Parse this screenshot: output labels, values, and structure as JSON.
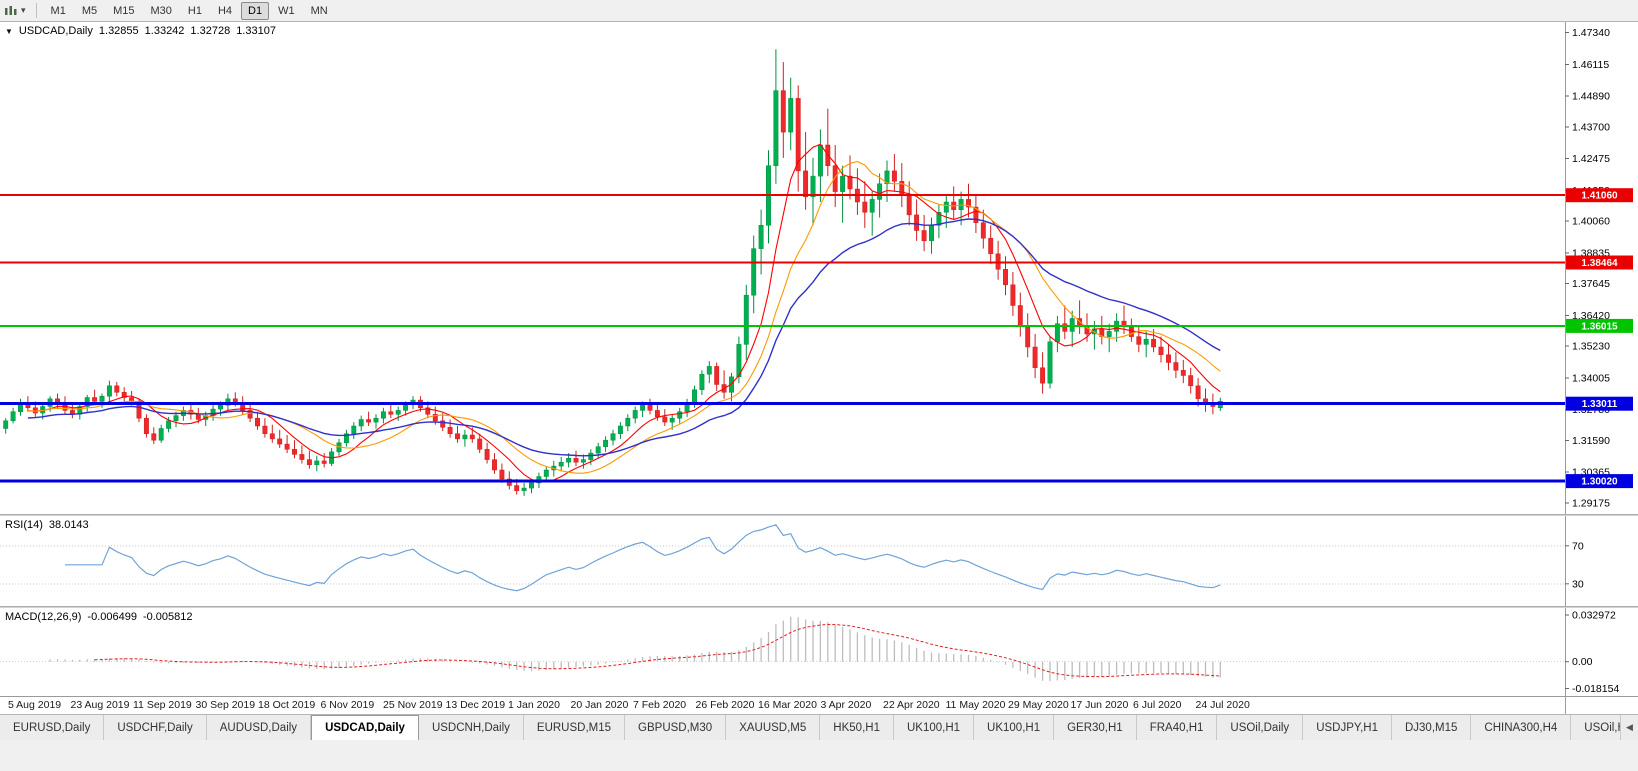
{
  "toolbar": {
    "timeframes": [
      "M1",
      "M5",
      "M15",
      "M30",
      "H1",
      "H4",
      "D1",
      "W1",
      "MN"
    ],
    "active_timeframe": "D1"
  },
  "chart_header": {
    "dropdown_icon": "▼",
    "symbol": "USDCAD,Daily",
    "open": "1.32855",
    "high": "1.33242",
    "low": "1.32728",
    "close": "1.33107"
  },
  "panels": {
    "rsi_label": "RSI(14)",
    "rsi_value": "38.0143",
    "macd_label": "MACD(12,26,9)",
    "macd_value": "-0.006499",
    "macd_signal_value": "-0.005812"
  },
  "tabs": {
    "items": [
      "EURUSD,Daily",
      "USDCHF,Daily",
      "AUDUSD,Daily",
      "USDCAD,Daily",
      "USDCNH,Daily",
      "EURUSD,M15",
      "GBPUSD,M30",
      "XAUUSD,M5",
      "HK50,H1",
      "UK100,H1",
      "UK100,H1",
      "GER30,H1",
      "FRA40,H1",
      "USOil,Daily",
      "USDJPY,H1",
      "DJ30,M15",
      "CHINA300,H4",
      "USOil,H"
    ],
    "active_index": 3,
    "scroll_left_icon": "◀"
  },
  "chart_data": {
    "type": "candlestick",
    "symbol": "USDCAD",
    "timeframe": "Daily",
    "title": "USDCAD,Daily",
    "ohlc_format": [
      "open",
      "high",
      "low",
      "close"
    ],
    "price_range": [
      1.2875,
      1.4775
    ],
    "y_ticks": [
      "1.47340",
      "1.46115",
      "1.44890",
      "1.43700",
      "1.42475",
      "1.41250",
      "1.40060",
      "1.38835",
      "1.37645",
      "1.36420",
      "1.35230",
      "1.34005",
      "1.32780",
      "1.31590",
      "1.30365",
      "1.29175"
    ],
    "x_labels": [
      "5 Aug 2019",
      "23 Aug 2019",
      "11 Sep 2019",
      "30 Sep 2019",
      "18 Oct 2019",
      "6 Nov 2019",
      "25 Nov 2019",
      "13 Dec 2019",
      "1 Jan 2020",
      "20 Jan 2020",
      "7 Feb 2020",
      "26 Feb 2020",
      "16 Mar 2020",
      "3 Apr 2020",
      "22 Apr 2020",
      "11 May 2020",
      "29 May 2020",
      "17 Jun 2020",
      "6 Jul 2020",
      "24 Jul 2020"
    ],
    "hlines": [
      {
        "label": "1.41060",
        "value": 1.4106,
        "color": "#ea0000",
        "width": 2
      },
      {
        "label": "1.38464",
        "value": 1.38464,
        "color": "#ea0000",
        "width": 2
      },
      {
        "label": "1.36015",
        "value": 1.36015,
        "color": "#00c400",
        "width": 2
      },
      {
        "label": "1.33011",
        "value": 1.33011,
        "color": "#0000e0",
        "width": 3
      },
      {
        "label": "1.30020",
        "value": 1.3002,
        "color": "#0000e0",
        "width": 3
      }
    ],
    "colors": {
      "background": "#ffffff",
      "axis": "#9a9a9a",
      "up": "#00b050",
      "down": "#ef2929",
      "up_stroke": "#008f40",
      "down_stroke": "#cf1f1f"
    },
    "ma_lines": [
      {
        "period": 7,
        "type": "sma",
        "color": "#ff0000"
      },
      {
        "period": 13,
        "type": "sma",
        "color": "#ff9900"
      },
      {
        "period": 26,
        "type": "ema",
        "color": "#3030cc"
      }
    ],
    "rsi": {
      "period": 14,
      "current": 38.0143,
      "levels": [
        70,
        30
      ],
      "display_range": [
        15,
        95
      ],
      "color": "#6fa3d8"
    },
    "macd": {
      "fast": 12,
      "slow": 26,
      "signal_period": 9,
      "current": -0.006499,
      "signal_current": -0.005812,
      "display_range": [
        -0.0185,
        0.033
      ],
      "axis_ticks": [
        "0.032972",
        "0.00",
        "-0.018154"
      ],
      "histogram_color": "#bdbdbd",
      "signal_color": "#e02020"
    },
    "candles": [
      [
        1.3205,
        1.3245,
        1.3185,
        1.3235
      ],
      [
        1.3235,
        1.3285,
        1.3225,
        1.327
      ],
      [
        1.327,
        1.332,
        1.3255,
        1.3305
      ],
      [
        1.3305,
        1.333,
        1.327,
        1.3285
      ],
      [
        1.3285,
        1.331,
        1.325,
        1.3265
      ],
      [
        1.3265,
        1.33,
        1.324,
        1.329
      ],
      [
        1.329,
        1.333,
        1.327,
        1.332
      ],
      [
        1.332,
        1.334,
        1.328,
        1.33
      ],
      [
        1.33,
        1.333,
        1.326,
        1.3275
      ],
      [
        1.3275,
        1.3305,
        1.3245,
        1.326
      ],
      [
        1.326,
        1.33,
        1.324,
        1.329
      ],
      [
        1.329,
        1.3335,
        1.327,
        1.3325
      ],
      [
        1.3325,
        1.3355,
        1.33,
        1.331
      ],
      [
        1.331,
        1.334,
        1.3285,
        1.333
      ],
      [
        1.333,
        1.339,
        1.331,
        1.337
      ],
      [
        1.337,
        1.3385,
        1.333,
        1.3345
      ],
      [
        1.3345,
        1.3365,
        1.331,
        1.3325
      ],
      [
        1.3325,
        1.335,
        1.3295,
        1.331
      ],
      [
        1.331,
        1.332,
        1.323,
        1.3245
      ],
      [
        1.3245,
        1.326,
        1.317,
        1.3185
      ],
      [
        1.3185,
        1.321,
        1.3145,
        1.316
      ],
      [
        1.316,
        1.322,
        1.315,
        1.3205
      ],
      [
        1.3205,
        1.325,
        1.319,
        1.3235
      ],
      [
        1.3235,
        1.327,
        1.321,
        1.3255
      ],
      [
        1.3255,
        1.329,
        1.3235,
        1.3275
      ],
      [
        1.3275,
        1.33,
        1.324,
        1.326
      ],
      [
        1.326,
        1.3285,
        1.3225,
        1.324
      ],
      [
        1.324,
        1.327,
        1.3215,
        1.3255
      ],
      [
        1.3255,
        1.3295,
        1.3235,
        1.328
      ],
      [
        1.328,
        1.331,
        1.3255,
        1.3295
      ],
      [
        1.3295,
        1.334,
        1.3275,
        1.332
      ],
      [
        1.332,
        1.3345,
        1.329,
        1.3305
      ],
      [
        1.3305,
        1.333,
        1.326,
        1.3275
      ],
      [
        1.3275,
        1.33,
        1.323,
        1.3245
      ],
      [
        1.3245,
        1.327,
        1.32,
        1.3215
      ],
      [
        1.3215,
        1.3245,
        1.317,
        1.3185
      ],
      [
        1.3185,
        1.322,
        1.315,
        1.3165
      ],
      [
        1.3165,
        1.32,
        1.313,
        1.3145
      ],
      [
        1.3145,
        1.318,
        1.311,
        1.3125
      ],
      [
        1.3125,
        1.316,
        1.309,
        1.3105
      ],
      [
        1.3105,
        1.314,
        1.307,
        1.3085
      ],
      [
        1.3085,
        1.312,
        1.305,
        1.3065
      ],
      [
        1.3065,
        1.31,
        1.304,
        1.308
      ],
      [
        1.308,
        1.311,
        1.3055,
        1.307
      ],
      [
        1.307,
        1.313,
        1.306,
        1.3115
      ],
      [
        1.3115,
        1.3165,
        1.31,
        1.315
      ],
      [
        1.315,
        1.32,
        1.3135,
        1.3185
      ],
      [
        1.3185,
        1.323,
        1.3165,
        1.3215
      ],
      [
        1.3215,
        1.3255,
        1.3195,
        1.324
      ],
      [
        1.324,
        1.327,
        1.3215,
        1.323
      ],
      [
        1.323,
        1.326,
        1.3205,
        1.3245
      ],
      [
        1.3245,
        1.3285,
        1.3225,
        1.327
      ],
      [
        1.327,
        1.33,
        1.3245,
        1.326
      ],
      [
        1.326,
        1.329,
        1.3235,
        1.3275
      ],
      [
        1.3275,
        1.331,
        1.3255,
        1.33
      ],
      [
        1.33,
        1.333,
        1.328,
        1.3315
      ],
      [
        1.3315,
        1.333,
        1.327,
        1.3285
      ],
      [
        1.3285,
        1.331,
        1.3245,
        1.326
      ],
      [
        1.326,
        1.329,
        1.322,
        1.3235
      ],
      [
        1.3235,
        1.3265,
        1.3195,
        1.321
      ],
      [
        1.321,
        1.324,
        1.317,
        1.3185
      ],
      [
        1.3185,
        1.3215,
        1.315,
        1.3165
      ],
      [
        1.3165,
        1.32,
        1.3135,
        1.318
      ],
      [
        1.318,
        1.321,
        1.315,
        1.3165
      ],
      [
        1.3165,
        1.3185,
        1.311,
        1.3125
      ],
      [
        1.3125,
        1.315,
        1.307,
        1.3085
      ],
      [
        1.3085,
        1.311,
        1.303,
        1.3045
      ],
      [
        1.3045,
        1.307,
        1.2995,
        1.301
      ],
      [
        1.301,
        1.304,
        1.297,
        1.2985
      ],
      [
        1.2985,
        1.301,
        1.295,
        1.2965
      ],
      [
        1.2965,
        1.2995,
        1.2945,
        1.2975
      ],
      [
        1.2975,
        1.301,
        1.2955,
        1.2995
      ],
      [
        1.2995,
        1.3035,
        1.2975,
        1.302
      ],
      [
        1.302,
        1.306,
        1.3,
        1.3045
      ],
      [
        1.3045,
        1.308,
        1.302,
        1.306
      ],
      [
        1.306,
        1.3095,
        1.304,
        1.3075
      ],
      [
        1.3075,
        1.311,
        1.3055,
        1.309
      ],
      [
        1.309,
        1.312,
        1.306,
        1.3075
      ],
      [
        1.3075,
        1.3105,
        1.305,
        1.3085
      ],
      [
        1.3085,
        1.3125,
        1.3065,
        1.311
      ],
      [
        1.311,
        1.315,
        1.309,
        1.3135
      ],
      [
        1.3135,
        1.3175,
        1.3115,
        1.316
      ],
      [
        1.316,
        1.32,
        1.314,
        1.3185
      ],
      [
        1.3185,
        1.323,
        1.3165,
        1.3215
      ],
      [
        1.3215,
        1.326,
        1.3195,
        1.3245
      ],
      [
        1.3245,
        1.329,
        1.3225,
        1.3275
      ],
      [
        1.3275,
        1.331,
        1.325,
        1.3295
      ],
      [
        1.3295,
        1.332,
        1.326,
        1.3275
      ],
      [
        1.3275,
        1.33,
        1.3235,
        1.325
      ],
      [
        1.325,
        1.328,
        1.3215,
        1.323
      ],
      [
        1.323,
        1.326,
        1.32,
        1.3245
      ],
      [
        1.3245,
        1.3285,
        1.3225,
        1.327
      ],
      [
        1.327,
        1.332,
        1.325,
        1.3305
      ],
      [
        1.3305,
        1.337,
        1.3285,
        1.3355
      ],
      [
        1.3355,
        1.343,
        1.3335,
        1.3415
      ],
      [
        1.3415,
        1.3465,
        1.338,
        1.3445
      ],
      [
        1.3445,
        1.346,
        1.335,
        1.3375
      ],
      [
        1.3375,
        1.343,
        1.332,
        1.3345
      ],
      [
        1.3345,
        1.342,
        1.331,
        1.3405
      ],
      [
        1.3405,
        1.356,
        1.338,
        1.353
      ],
      [
        1.353,
        1.376,
        1.347,
        1.372
      ],
      [
        1.372,
        1.395,
        1.365,
        1.39
      ],
      [
        1.39,
        1.405,
        1.38,
        1.399
      ],
      [
        1.399,
        1.428,
        1.392,
        1.422
      ],
      [
        1.422,
        1.467,
        1.415,
        1.451
      ],
      [
        1.451,
        1.462,
        1.425,
        1.435
      ],
      [
        1.435,
        1.456,
        1.428,
        1.448
      ],
      [
        1.448,
        1.453,
        1.412,
        1.42
      ],
      [
        1.42,
        1.435,
        1.405,
        1.41
      ],
      [
        1.41,
        1.425,
        1.399,
        1.418
      ],
      [
        1.418,
        1.436,
        1.408,
        1.43
      ],
      [
        1.43,
        1.444,
        1.418,
        1.422
      ],
      [
        1.422,
        1.43,
        1.406,
        1.412
      ],
      [
        1.412,
        1.422,
        1.4,
        1.418
      ],
      [
        1.418,
        1.426,
        1.409,
        1.413
      ],
      [
        1.413,
        1.421,
        1.403,
        1.408
      ],
      [
        1.408,
        1.416,
        1.398,
        1.404
      ],
      [
        1.404,
        1.412,
        1.395,
        1.409
      ],
      [
        1.409,
        1.419,
        1.402,
        1.415
      ],
      [
        1.415,
        1.424,
        1.408,
        1.42
      ],
      [
        1.42,
        1.4265,
        1.412,
        1.416
      ],
      [
        1.416,
        1.423,
        1.406,
        1.411
      ],
      [
        1.411,
        1.416,
        1.399,
        1.403
      ],
      [
        1.403,
        1.409,
        1.393,
        1.397
      ],
      [
        1.397,
        1.403,
        1.389,
        1.393
      ],
      [
        1.393,
        1.402,
        1.388,
        1.399
      ],
      [
        1.399,
        1.407,
        1.394,
        1.404
      ],
      [
        1.404,
        1.411,
        1.398,
        1.408
      ],
      [
        1.408,
        1.414,
        1.401,
        1.405
      ],
      [
        1.405,
        1.412,
        1.399,
        1.409
      ],
      [
        1.409,
        1.415,
        1.402,
        1.406
      ],
      [
        1.406,
        1.411,
        1.396,
        1.4
      ],
      [
        1.4,
        1.405,
        1.39,
        1.394
      ],
      [
        1.394,
        1.399,
        1.384,
        1.388
      ],
      [
        1.388,
        1.393,
        1.378,
        1.382
      ],
      [
        1.382,
        1.387,
        1.372,
        1.376
      ],
      [
        1.376,
        1.381,
        1.364,
        1.368
      ],
      [
        1.368,
        1.373,
        1.356,
        1.36
      ],
      [
        1.36,
        1.365,
        1.348,
        1.352
      ],
      [
        1.352,
        1.357,
        1.34,
        1.344
      ],
      [
        1.344,
        1.35,
        1.334,
        1.338
      ],
      [
        1.338,
        1.356,
        1.336,
        1.354
      ],
      [
        1.354,
        1.364,
        1.35,
        1.361
      ],
      [
        1.361,
        1.368,
        1.355,
        1.358
      ],
      [
        1.358,
        1.366,
        1.352,
        1.363
      ],
      [
        1.363,
        1.37,
        1.357,
        1.36
      ],
      [
        1.36,
        1.365,
        1.354,
        1.357
      ],
      [
        1.357,
        1.362,
        1.351,
        1.359
      ],
      [
        1.359,
        1.364,
        1.353,
        1.356
      ],
      [
        1.356,
        1.361,
        1.35,
        1.358
      ],
      [
        1.358,
        1.365,
        1.354,
        1.362
      ],
      [
        1.362,
        1.368,
        1.357,
        1.36
      ],
      [
        1.36,
        1.363,
        1.354,
        1.356
      ],
      [
        1.356,
        1.36,
        1.35,
        1.353
      ],
      [
        1.353,
        1.358,
        1.348,
        1.355
      ],
      [
        1.355,
        1.359,
        1.35,
        1.352
      ],
      [
        1.352,
        1.356,
        1.346,
        1.349
      ],
      [
        1.349,
        1.353,
        1.343,
        1.346
      ],
      [
        1.346,
        1.35,
        1.34,
        1.343
      ],
      [
        1.343,
        1.347,
        1.338,
        1.341
      ],
      [
        1.341,
        1.344,
        1.334,
        1.337
      ],
      [
        1.337,
        1.34,
        1.329,
        1.332
      ],
      [
        1.332,
        1.336,
        1.327,
        1.33
      ],
      [
        1.33,
        1.334,
        1.326,
        1.329
      ],
      [
        1.32855,
        1.33242,
        1.32728,
        1.33107
      ]
    ]
  }
}
